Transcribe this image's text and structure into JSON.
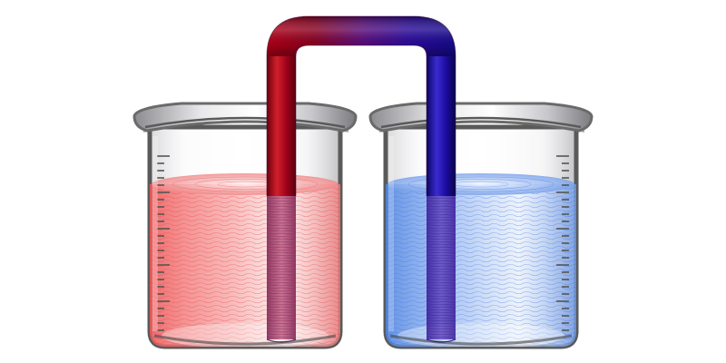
{
  "scene": {
    "subject": "salt-bridge-two-beakers",
    "colors": {
      "background": "#ffffff",
      "beaker_rim": "#707070",
      "beaker_outline": "#5a5a5a",
      "scale_marks": "#555555",
      "liquid_left": "#f06a6a",
      "liquid_left_light": "#fbe3e3",
      "liquid_right": "#5a8fe8",
      "liquid_right_light": "#e3ecfb",
      "tube_left": "#c00018",
      "tube_mid": "#6a0a80",
      "tube_right": "#1a0a9a"
    },
    "beakers": [
      {
        "id": "left",
        "liquid_level": 0.8,
        "liquid": "red"
      },
      {
        "id": "right",
        "liquid_level": 0.8,
        "liquid": "blue"
      }
    ],
    "tube": {
      "shape": "inverted-U"
    }
  }
}
